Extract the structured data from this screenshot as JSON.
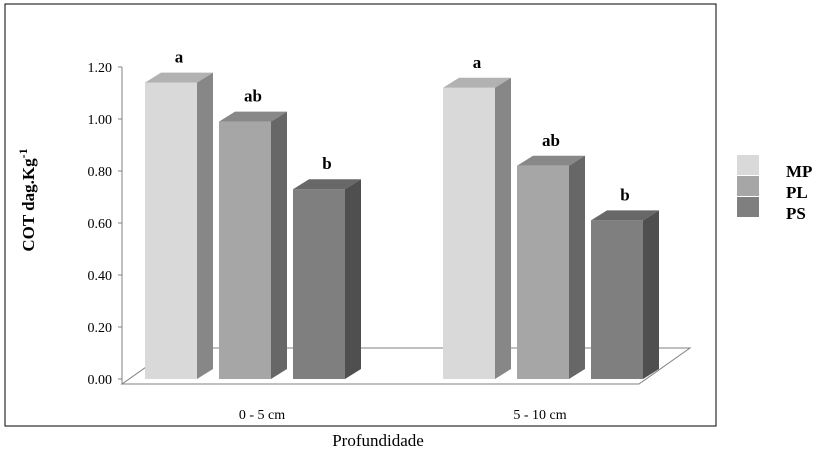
{
  "chart_data": {
    "type": "bar",
    "title": "",
    "xlabel": "Profundidade",
    "ylabel_main": "COT dag.Kg",
    "ylabel_sup": "-1",
    "categories": [
      "0 - 5 cm",
      "5 - 10 cm"
    ],
    "series": [
      {
        "name": "MP",
        "values": [
          1.14,
          1.12
        ],
        "letters": [
          "a",
          "a"
        ],
        "color": "#d9d9d9"
      },
      {
        "name": "PL",
        "values": [
          0.99,
          0.82
        ],
        "letters": [
          "ab",
          "ab"
        ],
        "color": "#a6a6a6"
      },
      {
        "name": "PS",
        "values": [
          0.73,
          0.61
        ],
        "letters": [
          "b",
          "b"
        ],
        "color": "#7f7f7f"
      }
    ],
    "yticks": [
      "0.00",
      "0.20",
      "0.40",
      "0.60",
      "0.80",
      "1.00",
      "1.20"
    ],
    "ylim": [
      0,
      1.2
    ],
    "legend_position": "right",
    "grid": false,
    "three_d": true
  }
}
